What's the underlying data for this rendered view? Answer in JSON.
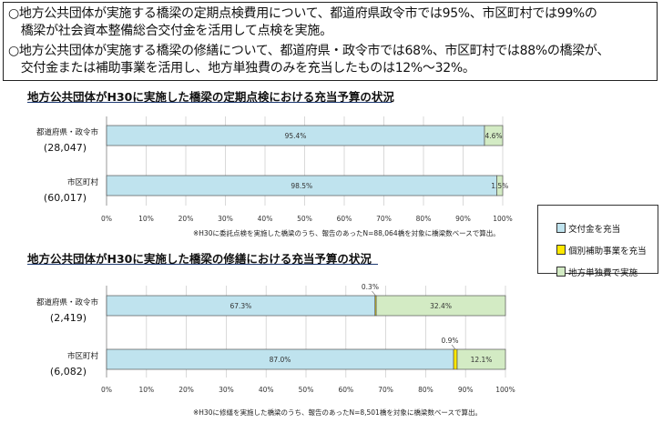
{
  "summary": {
    "line1a": "○地方公共団体が実施する橋梁の定期点検費用について、都道府県政令市では95%、市区町村では99%の",
    "line1b": "　橋梁が社会資本整備総合交付金を活用して点検を実施。",
    "line2a": "○地方公共団体が実施する橋梁の修繕について、都道府県・政令市では68%、市区町村では88%の橋梁が、",
    "line2b": "　交付金または補助事業を活用し、地方単独費のみを充当したものは12%～32%。"
  },
  "legend": {
    "items": [
      "交付金を充当",
      "個別補助事業を充当",
      "地方単独費で実施"
    ],
    "colors": [
      "#bfe3ee",
      "#ffe800",
      "#d3ebc4"
    ]
  },
  "chart_data": [
    {
      "type": "bar",
      "orientation": "horizontal",
      "stacked": true,
      "title": "地方公共団体がH30に実施した橋梁の定期点検における充当予算の状況",
      "categories": [
        "都道府県・政令市",
        "市区町村"
      ],
      "category_counts": [
        "(28,047)",
        "(60,017)"
      ],
      "series": [
        {
          "name": "交付金を充当",
          "values": [
            95.4,
            98.5
          ],
          "labels": [
            "95.4%",
            "98.5%"
          ]
        },
        {
          "name": "地方単独費で実施",
          "values": [
            4.6,
            1.5
          ],
          "labels": [
            "4.6%",
            "1.5%"
          ]
        }
      ],
      "xlim": [
        0,
        100
      ],
      "xticks": [
        "0%",
        "10%",
        "20%",
        "30%",
        "40%",
        "50%",
        "60%",
        "70%",
        "80%",
        "90%",
        "100%"
      ],
      "note": "※H30に委託点検を実施した橋梁のうち、報告のあったN=88,064橋を対象に橋梁数ベースで算出。"
    },
    {
      "type": "bar",
      "orientation": "horizontal",
      "stacked": true,
      "title": "地方公共団体がH30に実施した橋梁の修繕における充当予算の状況",
      "categories": [
        "都道府県・政令市",
        "市区町村"
      ],
      "category_counts": [
        "(2,419)",
        "(6,082)"
      ],
      "series": [
        {
          "name": "交付金を充当",
          "values": [
            67.3,
            87.0
          ],
          "labels": [
            "67.3%",
            "87.0%"
          ]
        },
        {
          "name": "個別補助事業を充当",
          "values": [
            0.3,
            0.9
          ],
          "labels": [
            "0.3%",
            "0.9%"
          ]
        },
        {
          "name": "地方単独費で実施",
          "values": [
            32.4,
            12.1
          ],
          "labels": [
            "32.4%",
            "12.1%"
          ]
        }
      ],
      "xlim": [
        0,
        100
      ],
      "xticks": [
        "0%",
        "10%",
        "20%",
        "30%",
        "40%",
        "50%",
        "60%",
        "70%",
        "80%",
        "90%",
        "100%"
      ],
      "note": "※H30に修繕を実施した橋梁のうち、報告のあったN=8,501橋を対象に橋梁数ベースで算出。"
    }
  ]
}
